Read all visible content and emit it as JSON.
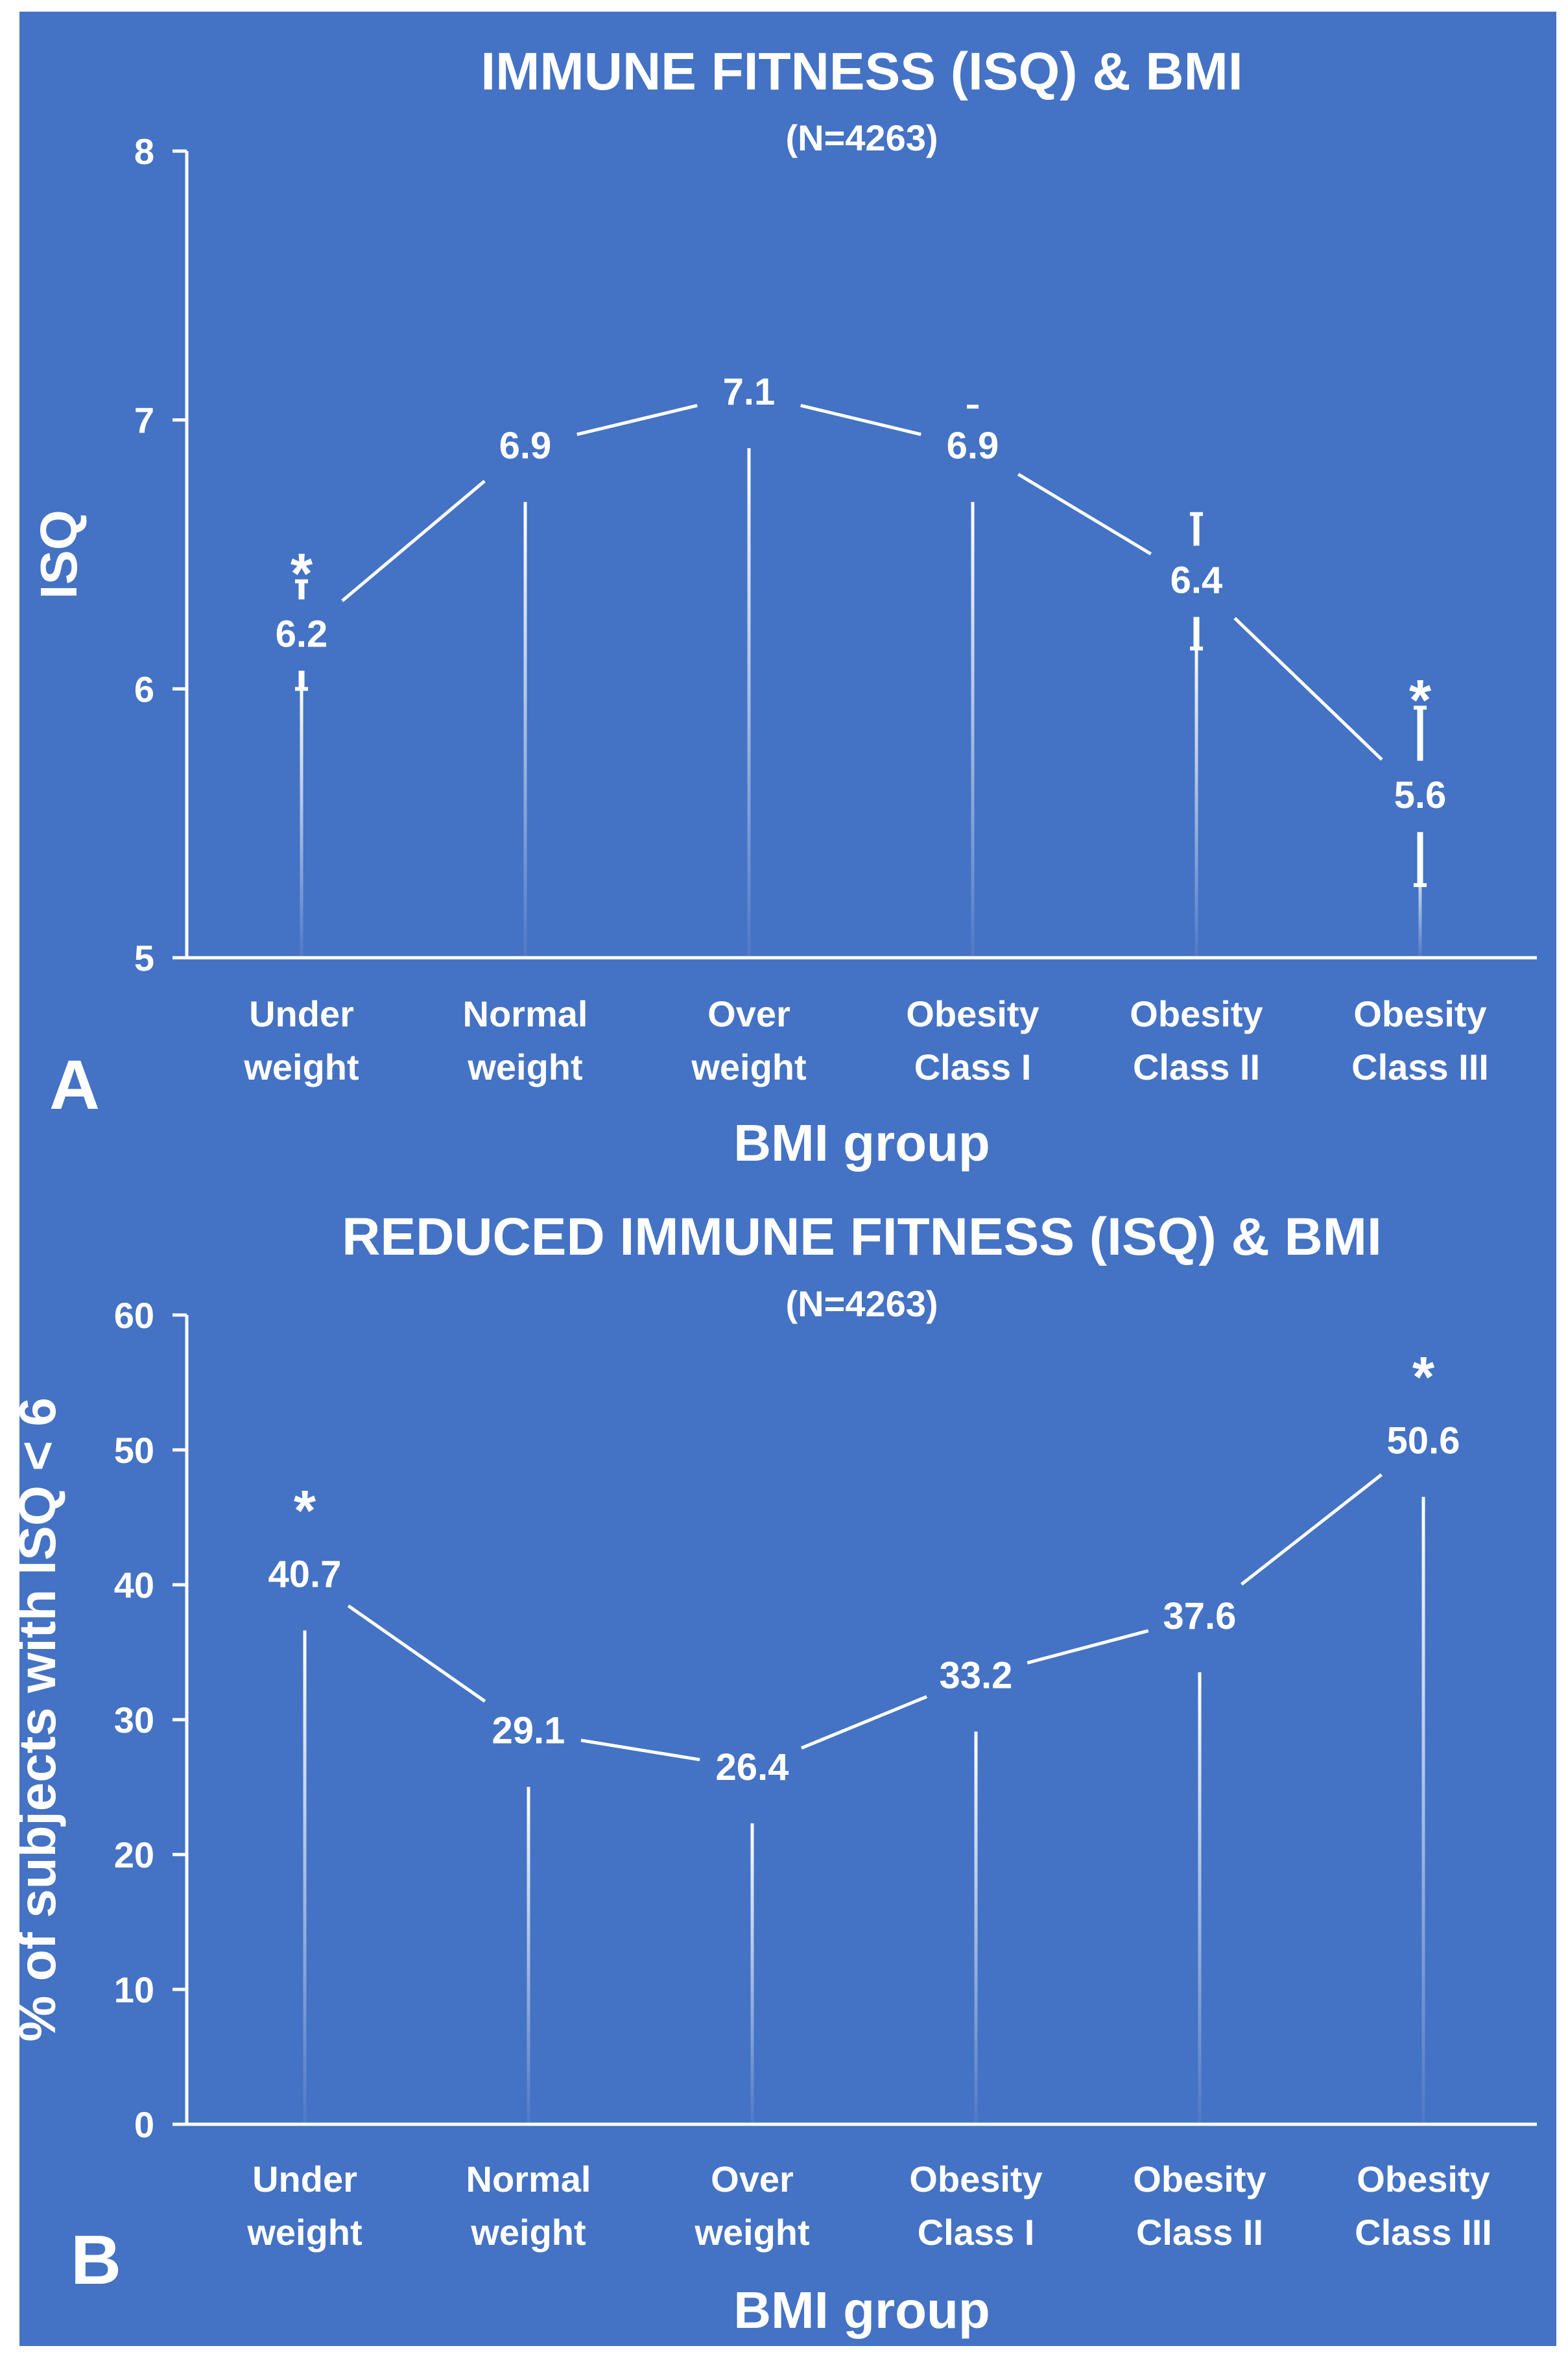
{
  "chart_data": [
    {
      "type": "line",
      "panel_label": "A",
      "title": "IMMUNE FITNESS (ISQ) & BMI",
      "subtitle": "(N=4263)",
      "xlabel": "BMI group",
      "ylabel": "ISQ",
      "categories": [
        [
          "Under",
          "weight"
        ],
        [
          "Normal",
          "weight"
        ],
        [
          "Over",
          "weight"
        ],
        [
          "Obesity",
          "Class I"
        ],
        [
          "Obesity",
          "Class II"
        ],
        [
          "Obesity",
          "Class III"
        ]
      ],
      "values": [
        6.2,
        6.9,
        7.1,
        6.9,
        6.4,
        5.6
      ],
      "value_labels": [
        "6.2",
        "6.9",
        "7.1",
        "6.9",
        "6.4",
        "5.6"
      ],
      "error": [
        0.2,
        0.03,
        0.02,
        0.06,
        0.25,
        0.33
      ],
      "significant": [
        true,
        false,
        false,
        false,
        false,
        true
      ],
      "significance_marker": "*",
      "ylim": [
        5,
        8
      ],
      "yticks": [
        5,
        6,
        7,
        8
      ],
      "drop_lines": true,
      "grid": false,
      "colors": {
        "background": "#4472c4",
        "ink": "#ffffff"
      }
    },
    {
      "type": "line",
      "panel_label": "B",
      "title": "REDUCED IMMUNE FITNESS (ISQ) & BMI",
      "subtitle": "(N=4263)",
      "xlabel": "BMI group",
      "ylabel": "% of subjects with ISQ < 6",
      "categories": [
        [
          "Under",
          "weight"
        ],
        [
          "Normal",
          "weight"
        ],
        [
          "Over",
          "weight"
        ],
        [
          "Obesity",
          "Class I"
        ],
        [
          "Obesity",
          "Class II"
        ],
        [
          "Obesity",
          "Class III"
        ]
      ],
      "values": [
        40.7,
        29.1,
        26.4,
        33.2,
        37.6,
        50.6
      ],
      "value_labels": [
        "40.7",
        "29.1",
        "26.4",
        "33.2",
        "37.6",
        "50.6"
      ],
      "significant": [
        true,
        false,
        false,
        false,
        false,
        true
      ],
      "significance_marker": "*",
      "ylim": [
        0,
        60
      ],
      "yticks": [
        0,
        10,
        20,
        30,
        40,
        50,
        60
      ],
      "drop_lines": true,
      "grid": false,
      "colors": {
        "background": "#4472c4",
        "ink": "#ffffff"
      }
    }
  ]
}
